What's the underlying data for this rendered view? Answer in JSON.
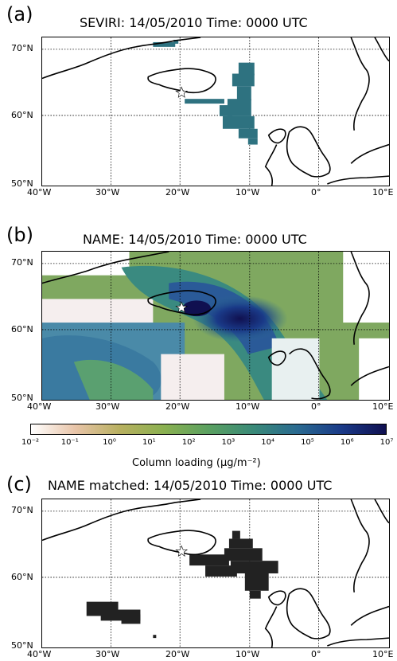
{
  "panels": [
    {
      "letter": "(a)",
      "title": "SEVIRI: 14/05/2010 Time: 0000 UTC"
    },
    {
      "letter": "(b)",
      "title": "NAME: 14/05/2010 Time: 0000 UTC"
    },
    {
      "letter": "(c)",
      "title": "NAME matched: 14/05/2010 Time: 0000 UTC"
    }
  ],
  "axes": {
    "lon_labels": [
      "40°W",
      "30°W",
      "20°W",
      "10°W",
      "0°",
      "10°E"
    ],
    "lat_labels": [
      "70°N",
      "60°N",
      "50°N"
    ],
    "lon_range": [
      -40,
      10
    ],
    "lat_range": [
      50,
      73
    ]
  },
  "colorbar": {
    "label": "Column loading (μg/m⁻²)",
    "ticks": [
      "10⁻²",
      "10⁻¹",
      "10⁰",
      "10¹",
      "10²",
      "10³",
      "10⁴",
      "10⁵",
      "10⁶",
      "10⁷"
    ],
    "scale": "log",
    "colors": [
      "#ffffff",
      "#e8c4a8",
      "#b8b060",
      "#8ab050",
      "#5aa060",
      "#3a8a78",
      "#2a6a90",
      "#1a3a88",
      "#101050"
    ]
  },
  "colors": {
    "seviri_ash": "#2e7280",
    "name_matched": "#222222",
    "land_outline": "#000000",
    "volcano_star": "#ffffff"
  },
  "volcano": {
    "name_icon": "star-icon",
    "lon": -19.6,
    "lat": 63.6
  }
}
